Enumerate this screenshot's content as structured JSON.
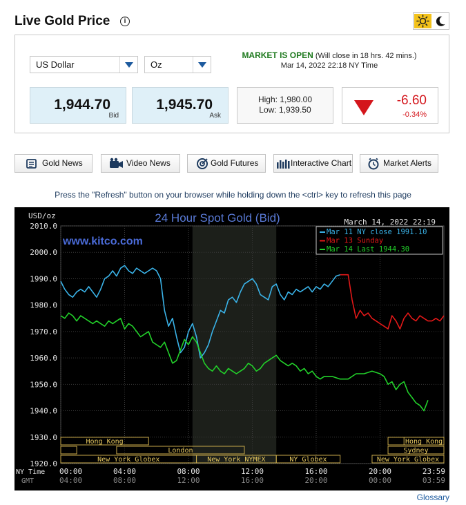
{
  "header": {
    "title": "Live Gold Price",
    "info_icon": "info-icon",
    "theme_icons": [
      "sun-icon",
      "moon-icon"
    ]
  },
  "selectors": {
    "currency": "US Dollar",
    "unit": "Oz"
  },
  "market": {
    "status": "MARKET IS OPEN",
    "close_note": "(Will close in 18 hrs. 42 mins.)",
    "datetime": "Mar 14, 2022 22:18 NY Time"
  },
  "quote": {
    "bid": "1,944.70",
    "bid_label": "Bid",
    "ask": "1,945.70",
    "ask_label": "Ask",
    "high": "High: 1,980.00",
    "low": "Low: 1,939.50",
    "change": "-6.60",
    "change_pct": "-0.34%"
  },
  "nav": [
    {
      "label": "Gold News",
      "icon": "newspaper-icon"
    },
    {
      "label": "Video News",
      "icon": "video-camera-icon"
    },
    {
      "label": "Gold Futures",
      "icon": "target-icon"
    },
    {
      "label": "Interactive Chart",
      "icon": "bar-chart-icon"
    },
    {
      "label": "Market Alerts",
      "icon": "alarm-clock-icon"
    }
  ],
  "refresh_note": "Press the \"Refresh\" button on your browser while holding down the <ctrl> key to refresh this page",
  "glossary": "Glossary",
  "colors": {
    "market_open": "#1f7a1f",
    "negative": "#d4161c",
    "series_nyclose": "#3ab3e8",
    "series_sunday": "#e31818",
    "series_last": "#22d12a",
    "chart_title": "#5a7bd8"
  },
  "chart_data": {
    "type": "line",
    "title": "24 Hour Spot Gold (Bid)",
    "watermark": "www.kitco.com",
    "timestamp": "March 14, 2022 22:19",
    "ylabel": "USD/oz",
    "ylim": [
      1920,
      2010
    ],
    "yticks": [
      "2010.0",
      "2000.0",
      "1990.0",
      "1980.0",
      "1970.0",
      "1960.0",
      "1950.0",
      "1940.0",
      "1930.0",
      "1920.0"
    ],
    "x_axis_labels": {
      "ny": "NY Time",
      "gmt": "GMT"
    },
    "xticks_ny": [
      "00:00",
      "04:00",
      "08:00",
      "12:00",
      "16:00",
      "20:00",
      "23:59"
    ],
    "xticks_gmt": [
      "04:00",
      "08:00",
      "12:00",
      "16:00",
      "20:00",
      "00:00",
      "03:59"
    ],
    "xlim_hours": [
      0,
      24
    ],
    "grid": true,
    "legend_placement": "top-right",
    "sessions": [
      {
        "name": "Hong Kong",
        "row": 1,
        "start": 0,
        "end": 5.5
      },
      {
        "name": "",
        "row": 1,
        "start": 20.5,
        "end": 24
      },
      {
        "name": "Hong Kong",
        "row": 1,
        "start": 21.5,
        "end": 24
      },
      {
        "name": "",
        "row": 2,
        "start": 0,
        "end": 1
      },
      {
        "name": "London",
        "row": 2,
        "start": 3.5,
        "end": 11.5
      },
      {
        "name": "Sydney",
        "row": 2,
        "start": 20.5,
        "end": 24
      },
      {
        "name": "New York Globex",
        "row": 3,
        "start": 0,
        "end": 8.5
      },
      {
        "name": "New York NYMEX",
        "row": 3,
        "start": 8.5,
        "end": 13.5
      },
      {
        "name": "NY Globex",
        "row": 3,
        "start": 13.5,
        "end": 17.5
      },
      {
        "name": "New York Globex",
        "row": 3,
        "start": 19.5,
        "end": 24
      }
    ],
    "highlight_range_hours": [
      8.25,
      13.5
    ],
    "series": [
      {
        "name": "Mar 11 NY close 1991.10",
        "color": "#3ab3e8",
        "x": [
          0,
          0.25,
          0.5,
          0.75,
          1,
          1.25,
          1.5,
          1.75,
          2,
          2.25,
          2.5,
          2.75,
          3,
          3.25,
          3.5,
          3.75,
          4,
          4.25,
          4.5,
          4.75,
          5,
          5.25,
          5.5,
          5.75,
          6,
          6.25,
          6.5,
          6.75,
          7,
          7.25,
          7.5,
          7.75,
          8,
          8.25,
          8.5,
          8.75,
          9,
          9.25,
          9.5,
          9.75,
          10,
          10.25,
          10.5,
          10.75,
          11,
          11.25,
          11.5,
          11.75,
          12,
          12.25,
          12.5,
          12.75,
          13,
          13.25,
          13.5,
          13.75,
          14,
          14.25,
          14.5,
          14.75,
          15,
          15.25,
          15.5,
          15.75,
          16,
          16.25,
          16.5,
          16.75,
          17,
          17.25,
          17.5
        ],
        "y": [
          1989,
          1986,
          1984,
          1983,
          1985,
          1986,
          1985,
          1987,
          1985,
          1983,
          1986,
          1990,
          1991,
          1993,
          1991,
          1994,
          1995,
          1993,
          1992,
          1994,
          1993,
          1992,
          1993,
          1994,
          1993,
          1990,
          1978,
          1972,
          1975,
          1968,
          1962,
          1964,
          1970,
          1973,
          1968,
          1960,
          1962,
          1965,
          1970,
          1974,
          1978,
          1977,
          1982,
          1983,
          1981,
          1985,
          1988,
          1989,
          1990,
          1988,
          1984,
          1983,
          1982,
          1987,
          1988,
          1984,
          1982,
          1985,
          1984,
          1986,
          1985,
          1986,
          1987,
          1985,
          1987,
          1986,
          1988,
          1987,
          1989,
          1991,
          1991.5
        ]
      },
      {
        "name": "Mar 13 Sunday",
        "color": "#e31818",
        "x": [
          17.5,
          18,
          18.25,
          18.5,
          18.75,
          19,
          19.25,
          19.5,
          19.75,
          20,
          20.25,
          20.5,
          20.75,
          21,
          21.25,
          21.5,
          21.75,
          22,
          22.25,
          22.5,
          22.75,
          23,
          23.25,
          23.5,
          23.75,
          24
        ],
        "y": [
          1991.5,
          1991.5,
          1982,
          1975,
          1978,
          1976,
          1977,
          1975,
          1974,
          1973,
          1972,
          1971,
          1976,
          1974,
          1971,
          1975,
          1977,
          1975,
          1974,
          1976,
          1975,
          1974,
          1974,
          1975,
          1974,
          1976
        ]
      },
      {
        "name": "Mar 14 Last 1944.30",
        "color": "#22d12a",
        "x": [
          0,
          0.25,
          0.5,
          0.75,
          1,
          1.25,
          1.5,
          1.75,
          2,
          2.25,
          2.5,
          2.75,
          3,
          3.25,
          3.5,
          3.75,
          4,
          4.25,
          4.5,
          4.75,
          5,
          5.25,
          5.5,
          5.75,
          6,
          6.25,
          6.5,
          6.75,
          7,
          7.25,
          7.5,
          7.75,
          8,
          8.25,
          8.5,
          8.75,
          9,
          9.25,
          9.5,
          9.75,
          10,
          10.25,
          10.5,
          10.75,
          11,
          11.25,
          11.5,
          11.75,
          12,
          12.25,
          12.5,
          12.75,
          13,
          13.25,
          13.5,
          13.75,
          14,
          14.25,
          14.5,
          14.75,
          15,
          15.25,
          15.5,
          15.75,
          16,
          16.25,
          16.5,
          17,
          17.5,
          18,
          18.5,
          19,
          19.5,
          20,
          20.25,
          20.5,
          20.75,
          21,
          21.25,
          21.5,
          21.75,
          22,
          22.25,
          22.5,
          22.75,
          23
        ],
        "y": [
          1976,
          1975,
          1977,
          1976,
          1974,
          1976,
          1975,
          1974,
          1973,
          1974,
          1973,
          1972,
          1974,
          1973,
          1974,
          1975,
          1971,
          1973,
          1972,
          1970,
          1968,
          1969,
          1970,
          1966,
          1965,
          1964,
          1966,
          1962,
          1958,
          1959,
          1963,
          1967,
          1965,
          1968,
          1966,
          1962,
          1958,
          1956,
          1955,
          1957,
          1955,
          1954,
          1956,
          1955,
          1954,
          1955,
          1956,
          1958,
          1957,
          1955,
          1956,
          1958,
          1959,
          1960,
          1961,
          1959,
          1958,
          1957,
          1958,
          1957,
          1955,
          1956,
          1954,
          1955,
          1953,
          1952,
          1953,
          1953,
          1952,
          1952,
          1954,
          1954,
          1955,
          1954,
          1953,
          1950,
          1951,
          1948,
          1950,
          1951,
          1947,
          1945,
          1943,
          1942,
          1940,
          1944
        ]
      }
    ]
  }
}
